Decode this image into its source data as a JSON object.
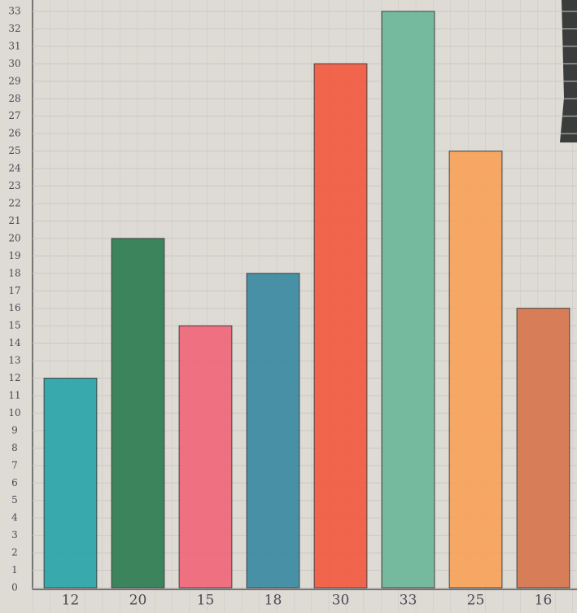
{
  "chart_data": {
    "type": "bar",
    "categories": [
      "12",
      "20",
      "15",
      "18",
      "30",
      "33",
      "25",
      "16"
    ],
    "values": [
      12,
      20,
      15,
      18,
      30,
      33,
      25,
      16
    ],
    "colors": [
      "#2aa5aa",
      "#2f7e52",
      "#f0677a",
      "#3b8aa3",
      "#f35b42",
      "#6db89b",
      "#f9a35a",
      "#d7774f"
    ],
    "ylim": [
      0,
      33
    ],
    "yticks": [
      0,
      1,
      2,
      3,
      4,
      5,
      6,
      7,
      8,
      9,
      10,
      11,
      12,
      13,
      14,
      15,
      16,
      17,
      18,
      19,
      20,
      21,
      22,
      23,
      24,
      25,
      26,
      27,
      28,
      29,
      30,
      31,
      32,
      33
    ],
    "grid": true
  }
}
